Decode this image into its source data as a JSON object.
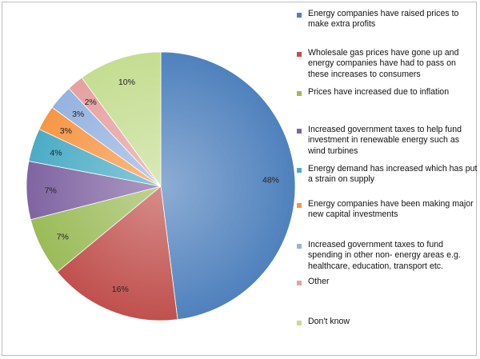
{
  "chart_data": {
    "type": "pie",
    "title": "",
    "start_angle_deg": 0,
    "direction": "clockwise",
    "legend_position": "right",
    "slices": [
      {
        "label": "Energy companies have raised prices to make extra profits",
        "value": 48,
        "value_label": "48%",
        "color": "#4f81bd"
      },
      {
        "label": "Wholesale gas prices have gone up and energy companies have had to pass on these increases to consumers",
        "value": 16,
        "value_label": "16%",
        "color": "#c0504d"
      },
      {
        "label": "Prices have increased due to inflation",
        "value": 7,
        "value_label": "7%",
        "color": "#9bbb59"
      },
      {
        "label": "Increased government taxes to help fund investment in renewable energy such as wind turbines",
        "value": 7,
        "value_label": "7%",
        "color": "#8064a2"
      },
      {
        "label": "Energy demand has increased which has put a strain on supply",
        "value": 4,
        "value_label": "4%",
        "color": "#4bacc6"
      },
      {
        "label": "Energy companies have been making major new capital investments",
        "value": 3,
        "value_label": "3%",
        "color": "#f79646"
      },
      {
        "label": "Increased government taxes to fund spending in other non- energy areas e.g. healthcare, education, transport etc.",
        "value": 3,
        "value_label": "3%",
        "color": "#95b3e0"
      },
      {
        "label": "Other",
        "value": 2,
        "value_label": "2%",
        "color": "#e6a0a0"
      },
      {
        "label": "Don't know",
        "value": 10,
        "value_label": "10%",
        "color": "#c4dd91"
      }
    ]
  }
}
